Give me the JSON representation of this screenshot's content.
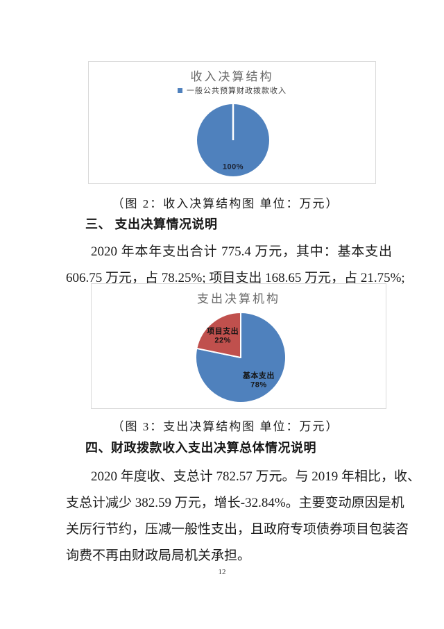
{
  "page": {
    "number": "12"
  },
  "chart_data": [
    {
      "type": "pie",
      "title": "收入决算结构",
      "legend_position": "top",
      "labels": [
        "一般公共预算财政拨款收入"
      ],
      "values": [
        100
      ],
      "colors": [
        "#4F81BD"
      ],
      "data_labels": [
        "100%"
      ],
      "label_r": [
        0.72
      ],
      "data_label_color": "#1b2233"
    },
    {
      "type": "pie",
      "title": "支出决算机构",
      "legend_position": "none",
      "labels": [
        "基本支出",
        "项目支出"
      ],
      "values": [
        606.75,
        168.65
      ],
      "colors": [
        "#4F81BD",
        "#C0504D"
      ],
      "data_labels": [
        "基本支出\n78%",
        "项目支出\n22%"
      ],
      "label_r": [
        0.63,
        0.63
      ],
      "data_label_color": "#141414"
    }
  ],
  "figures": [
    {
      "caption": "（图 2：收入决算结构图  单位：万元）"
    },
    {
      "caption": "（图 3：支出决算结构图  单位：万元）"
    }
  ],
  "sections": [
    {
      "heading": "三、 支出决算情况说明",
      "lines": [
        "2020 年本年支出合计 775.4 万元，其中：基本支出",
        "606.75 万元，占 78.25%; 项目支出 168.65 万元，占 21.75%;"
      ]
    },
    {
      "heading": "四、财政拨款收入支出决算总体情况说明",
      "lines": [
        "2020 年度收、支总计 782.57 万元。与 2019 年相比，收、",
        "支总计减少 382.59 万元，增长-32.84%。主要变动原因是机",
        "关厉行节约，压减一般性支出，且政府专项债券项目包装咨",
        "询费不再由财政局局机关承担。"
      ]
    }
  ]
}
